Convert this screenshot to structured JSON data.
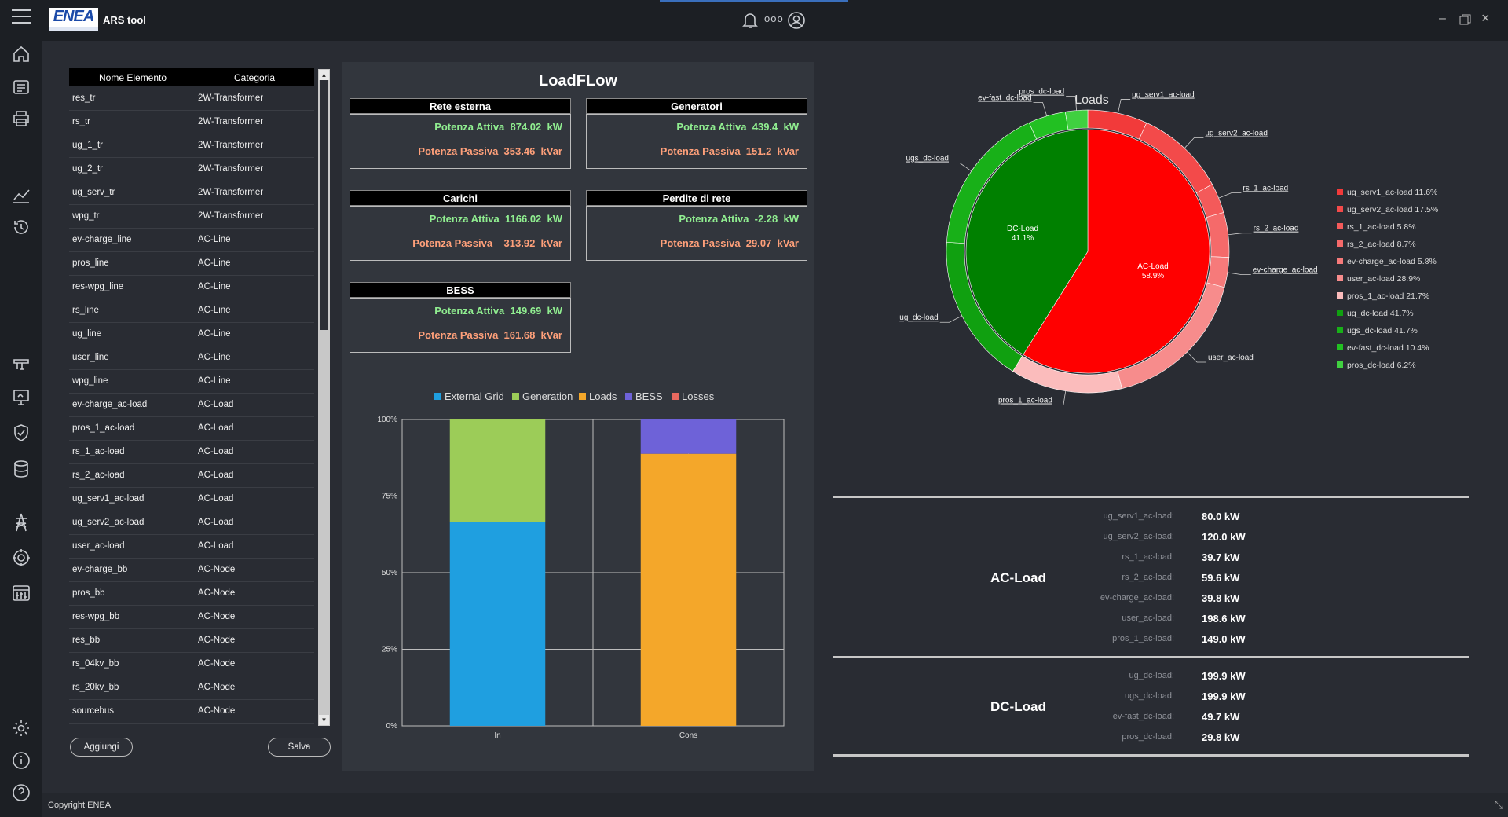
{
  "app": {
    "title": "ARS tool",
    "logo_text": "ENEA",
    "copyright": "Copyright ENEA",
    "header_icon_dots": "ooo"
  },
  "element_list": {
    "columns": [
      "Nome Elemento",
      "Categoria"
    ],
    "rows": [
      [
        "res_tr",
        "2W-Transformer"
      ],
      [
        "rs_tr",
        "2W-Transformer"
      ],
      [
        "ug_1_tr",
        "2W-Transformer"
      ],
      [
        "ug_2_tr",
        "2W-Transformer"
      ],
      [
        "ug_serv_tr",
        "2W-Transformer"
      ],
      [
        "wpg_tr",
        "2W-Transformer"
      ],
      [
        "ev-charge_line",
        "AC-Line"
      ],
      [
        "pros_line",
        "AC-Line"
      ],
      [
        "res-wpg_line",
        "AC-Line"
      ],
      [
        "rs_line",
        "AC-Line"
      ],
      [
        "ug_line",
        "AC-Line"
      ],
      [
        "user_line",
        "AC-Line"
      ],
      [
        "wpg_line",
        "AC-Line"
      ],
      [
        "ev-charge_ac-load",
        "AC-Load"
      ],
      [
        "pros_1_ac-load",
        "AC-Load"
      ],
      [
        "rs_1_ac-load",
        "AC-Load"
      ],
      [
        "rs_2_ac-load",
        "AC-Load"
      ],
      [
        "ug_serv1_ac-load",
        "AC-Load"
      ],
      [
        "ug_serv2_ac-load",
        "AC-Load"
      ],
      [
        "user_ac-load",
        "AC-Load"
      ],
      [
        "ev-charge_bb",
        "AC-Node"
      ],
      [
        "pros_bb",
        "AC-Node"
      ],
      [
        "res-wpg_bb",
        "AC-Node"
      ],
      [
        "res_bb",
        "AC-Node"
      ],
      [
        "rs_04kv_bb",
        "AC-Node"
      ],
      [
        "rs_20kv_bb",
        "AC-Node"
      ],
      [
        "sourcebus",
        "AC-Node"
      ]
    ],
    "add_button": "Aggiungi",
    "save_button": "Salva"
  },
  "loadflow": {
    "title": "LoadFLow",
    "cards": [
      {
        "title": "Rete esterna",
        "active": "Potenza Attiva  874.02  kW",
        "passive": "Potenza Passiva  353.46  kVar"
      },
      {
        "title": "Generatori",
        "active": "Potenza Attiva  439.4  kW",
        "passive": "Potenza Passiva  151.2  kVar"
      },
      {
        "title": "Carichi",
        "active": "Potenza Attiva  1166.02  kW",
        "passive": "Potenza Passiva    313.92  kVar"
      },
      {
        "title": "Perdite di rete",
        "active": "Potenza Attiva  -2.28  kW",
        "passive": "Potenza Passiva  29.07  kVar"
      },
      {
        "title": "BESS",
        "active": "Potenza Attiva  149.69  kW",
        "passive": "Potenza Passiva  161.68  kVar"
      }
    ]
  },
  "chart_data": [
    {
      "type": "bar",
      "stacked": true,
      "categories": [
        "In",
        "Cons"
      ],
      "series": [
        {
          "name": "External Grid",
          "color": "#1f9fe0",
          "values": [
            66.5,
            0
          ]
        },
        {
          "name": "Generation",
          "color": "#9ccc58",
          "values": [
            33.5,
            0
          ]
        },
        {
          "name": "Loads",
          "color": "#f4a72a",
          "values": [
            0,
            88.8
          ]
        },
        {
          "name": "BESS",
          "color": "#6e62d8",
          "values": [
            0,
            11.2
          ]
        },
        {
          "name": "Losses",
          "color": "#e8695f",
          "values": [
            0,
            0
          ]
        }
      ],
      "yticks": [
        "100%",
        "75%",
        "50%",
        "25%",
        "0%"
      ],
      "ylim": [
        0,
        100
      ],
      "grid": true,
      "legend": "top"
    },
    {
      "type": "pie",
      "title": "Loads",
      "inner": [
        {
          "label": "DC-Load",
          "value": 41.1,
          "color": "#008000",
          "pct": "41.1%"
        },
        {
          "label": "AC-Load",
          "value": 58.9,
          "color": "#ff0000",
          "pct": "58.9%"
        }
      ],
      "outer": [
        {
          "name": "ug_serv1_ac-load",
          "value": 6.83,
          "color": "#f23a3a"
        },
        {
          "name": "ug_serv2_ac-load",
          "value": 10.31,
          "color": "#f34a4a"
        },
        {
          "name": "rs_1_ac-load",
          "value": 3.42,
          "color": "#f45a5a"
        },
        {
          "name": "rs_2_ac-load",
          "value": 5.12,
          "color": "#f56a6a"
        },
        {
          "name": "ev-charge_ac-load",
          "value": 3.42,
          "color": "#f67a7a"
        },
        {
          "name": "user_ac-load",
          "value": 17.02,
          "color": "#f78c8c"
        },
        {
          "name": "pros_1_ac-load",
          "value": 12.78,
          "color": "#fbbcbc"
        },
        {
          "name": "ug_dc-load",
          "value": 17.14,
          "color": "#10a010"
        },
        {
          "name": "ugs_dc-load",
          "value": 17.14,
          "color": "#18b018"
        },
        {
          "name": "ev-fast_dc-load",
          "value": 4.27,
          "color": "#22c022"
        },
        {
          "name": "pros_dc-load",
          "value": 2.55,
          "color": "#40d040"
        }
      ],
      "legend_entries": [
        {
          "text": "ug_serv1_ac-load 11.6%",
          "color": "#f23a3a"
        },
        {
          "text": "ug_serv2_ac-load 17.5%",
          "color": "#f34a4a"
        },
        {
          "text": "rs_1_ac-load 5.8%",
          "color": "#f45a5a"
        },
        {
          "text": "rs_2_ac-load 8.7%",
          "color": "#f56a6a"
        },
        {
          "text": "ev-charge_ac-load 5.8%",
          "color": "#f67a7a"
        },
        {
          "text": "user_ac-load 28.9%",
          "color": "#f78c8c"
        },
        {
          "text": "pros_1_ac-load 21.7%",
          "color": "#fbbcbc"
        },
        {
          "text": "ug_dc-load 41.7%",
          "color": "#10a010"
        },
        {
          "text": "ugs_dc-load 41.7%",
          "color": "#18b018"
        },
        {
          "text": "ev-fast_dc-load 10.4%",
          "color": "#22c022"
        },
        {
          "text": "pros_dc-load 6.2%",
          "color": "#40d040"
        }
      ],
      "legend": "right"
    }
  ],
  "load_values": {
    "ac_group": "AC-Load",
    "dc_group": "DC-Load",
    "ac": [
      {
        "label": "ug_serv1_ac-load:",
        "value": "80.0 kW"
      },
      {
        "label": "ug_serv2_ac-load:",
        "value": "120.0 kW"
      },
      {
        "label": "rs_1_ac-load:",
        "value": "39.7 kW"
      },
      {
        "label": "rs_2_ac-load:",
        "value": "59.6 kW"
      },
      {
        "label": "ev-charge_ac-load:",
        "value": "39.8 kW"
      },
      {
        "label": "user_ac-load:",
        "value": "198.6 kW"
      },
      {
        "label": "pros_1_ac-load:",
        "value": "149.0 kW"
      }
    ],
    "dc": [
      {
        "label": "ug_dc-load:",
        "value": "199.9 kW"
      },
      {
        "label": "ugs_dc-load:",
        "value": "199.9 kW"
      },
      {
        "label": "ev-fast_dc-load:",
        "value": "49.7 kW"
      },
      {
        "label": "pros_dc-load:",
        "value": "29.8 kW"
      }
    ]
  }
}
